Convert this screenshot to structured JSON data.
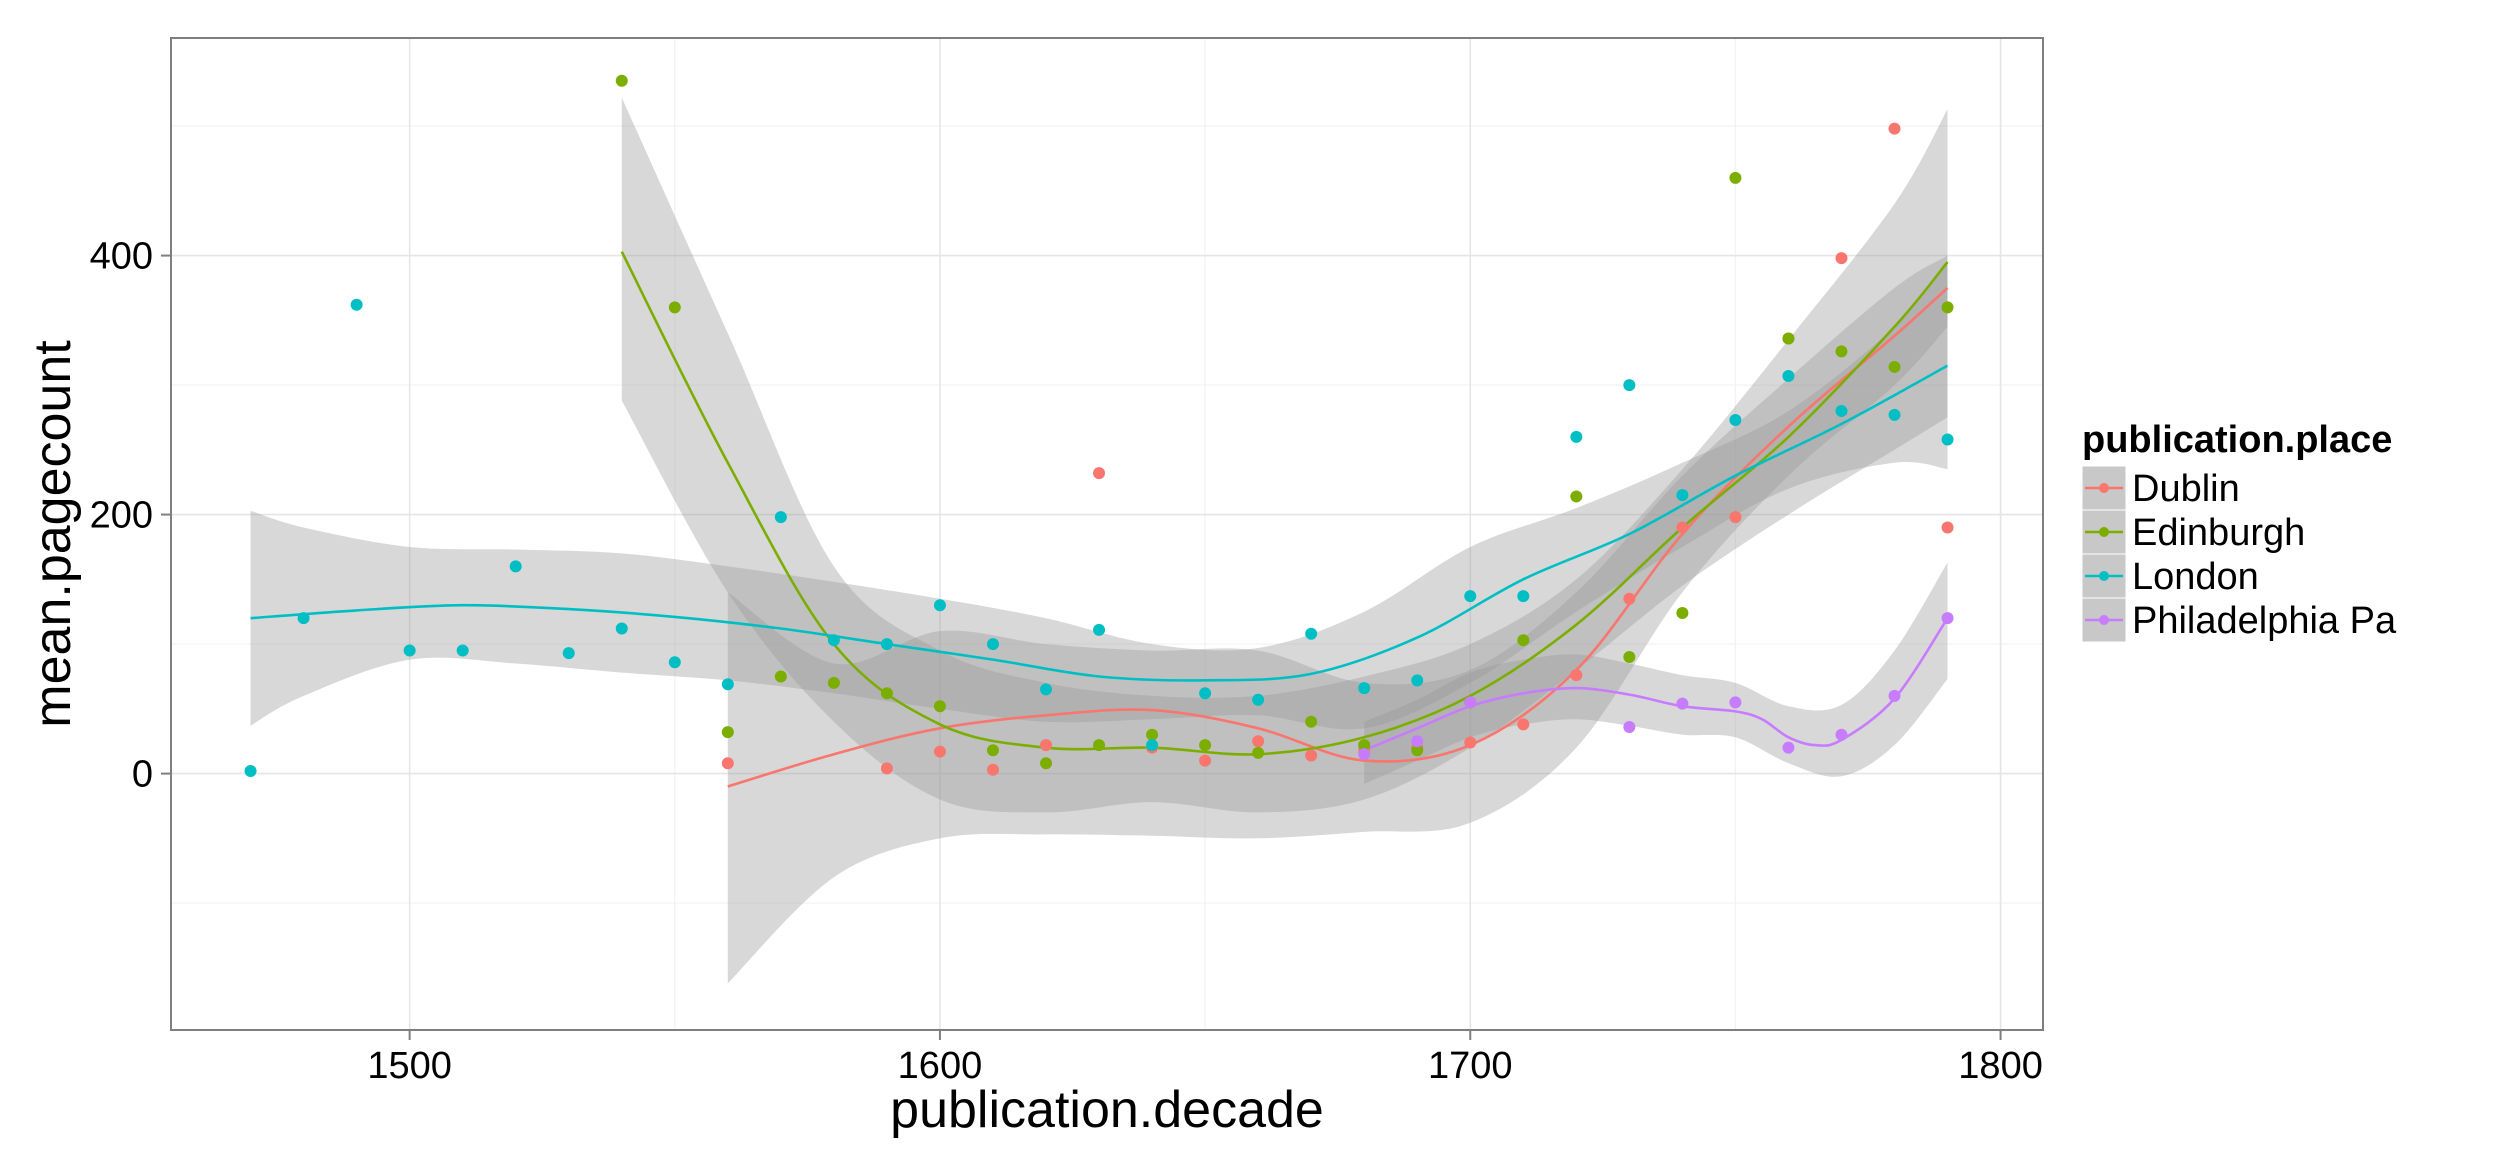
{
  "chart_data": {
    "type": "scatter",
    "xlabel": "publication.decade",
    "ylabel": "mean.pagecount",
    "xlim": [
      1455,
      1808
    ],
    "ylim": [
      -198,
      568
    ],
    "x_ticks": [
      1500,
      1600,
      1700,
      1800
    ],
    "y_ticks": [
      0,
      200,
      400
    ],
    "x_ticks_labels": [
      "1500",
      "1600",
      "1700",
      "1800"
    ],
    "y_ticks_labels": [
      "0",
      "200",
      "400"
    ],
    "grid": true,
    "legend": {
      "title": "publication.place",
      "position": "right"
    },
    "series": [
      {
        "name": "Dublin",
        "color": "#F8766D",
        "points": [
          [
            1560,
            8
          ],
          [
            1590,
            4
          ],
          [
            1600,
            17
          ],
          [
            1610,
            3
          ],
          [
            1620,
            22
          ],
          [
            1630,
            232
          ],
          [
            1640,
            20
          ],
          [
            1650,
            10
          ],
          [
            1660,
            25
          ],
          [
            1670,
            14
          ],
          [
            1680,
            18
          ],
          [
            1690,
            20
          ],
          [
            1700,
            24
          ],
          [
            1710,
            38
          ],
          [
            1720,
            76
          ],
          [
            1730,
            135
          ],
          [
            1740,
            190
          ],
          [
            1750,
            198
          ],
          [
            1760,
            336
          ],
          [
            1770,
            398
          ],
          [
            1780,
            498
          ],
          [
            1790,
            190
          ]
        ],
        "smooth": [
          [
            1560,
            -10
          ],
          [
            1580,
            15
          ],
          [
            1600,
            35
          ],
          [
            1620,
            45
          ],
          [
            1640,
            49
          ],
          [
            1660,
            35
          ],
          [
            1680,
            10
          ],
          [
            1700,
            22
          ],
          [
            1720,
            80
          ],
          [
            1740,
            185
          ],
          [
            1760,
            268
          ],
          [
            1780,
            338
          ],
          [
            1790,
            375
          ]
        ],
        "band_upper": [
          [
            1560,
            140
          ],
          [
            1580,
            85
          ],
          [
            1600,
            110
          ],
          [
            1620,
            100
          ],
          [
            1640,
            95
          ],
          [
            1660,
            95
          ],
          [
            1680,
            70
          ],
          [
            1700,
            80
          ],
          [
            1720,
            140
          ],
          [
            1740,
            230
          ],
          [
            1760,
            305
          ],
          [
            1780,
            375
          ],
          [
            1790,
            400
          ]
        ],
        "band_lower": [
          [
            1560,
            -162
          ],
          [
            1580,
            -80
          ],
          [
            1600,
            -50
          ],
          [
            1620,
            -47
          ],
          [
            1640,
            -48
          ],
          [
            1660,
            -50
          ],
          [
            1680,
            -45
          ],
          [
            1700,
            -38
          ],
          [
            1720,
            20
          ],
          [
            1740,
            140
          ],
          [
            1760,
            230
          ],
          [
            1780,
            300
          ],
          [
            1790,
            345
          ]
        ]
      },
      {
        "name": "Edinburgh",
        "color": "#7CAE00",
        "points": [
          [
            1540,
            535
          ],
          [
            1550,
            360
          ],
          [
            1560,
            32
          ],
          [
            1570,
            75
          ],
          [
            1580,
            70
          ],
          [
            1590,
            62
          ],
          [
            1600,
            52
          ],
          [
            1610,
            18
          ],
          [
            1620,
            8
          ],
          [
            1630,
            22
          ],
          [
            1640,
            30
          ],
          [
            1650,
            22
          ],
          [
            1660,
            16
          ],
          [
            1670,
            40
          ],
          [
            1680,
            22
          ],
          [
            1690,
            18
          ],
          [
            1700,
            55
          ],
          [
            1710,
            103
          ],
          [
            1720,
            214
          ],
          [
            1730,
            90
          ],
          [
            1740,
            124
          ],
          [
            1750,
            460
          ],
          [
            1760,
            336
          ],
          [
            1770,
            326
          ],
          [
            1780,
            314
          ],
          [
            1790,
            360
          ]
        ],
        "smooth": [
          [
            1540,
            403
          ],
          [
            1560,
            240
          ],
          [
            1580,
            100
          ],
          [
            1600,
            38
          ],
          [
            1620,
            20
          ],
          [
            1640,
            20
          ],
          [
            1660,
            15
          ],
          [
            1680,
            28
          ],
          [
            1700,
            60
          ],
          [
            1720,
            115
          ],
          [
            1740,
            190
          ],
          [
            1760,
            260
          ],
          [
            1780,
            345
          ],
          [
            1790,
            395
          ]
        ],
        "band_upper": [
          [
            1540,
            522
          ],
          [
            1560,
            340
          ],
          [
            1580,
            160
          ],
          [
            1600,
            95
          ],
          [
            1620,
            70
          ],
          [
            1640,
            60
          ],
          [
            1660,
            60
          ],
          [
            1680,
            75
          ],
          [
            1700,
            100
          ],
          [
            1720,
            150
          ],
          [
            1740,
            235
          ],
          [
            1760,
            335
          ],
          [
            1780,
            440
          ],
          [
            1790,
            513
          ]
        ],
        "band_lower": [
          [
            1540,
            288
          ],
          [
            1560,
            140
          ],
          [
            1580,
            40
          ],
          [
            1600,
            -20
          ],
          [
            1620,
            -30
          ],
          [
            1640,
            -22
          ],
          [
            1660,
            -30
          ],
          [
            1680,
            -20
          ],
          [
            1700,
            20
          ],
          [
            1720,
            80
          ],
          [
            1740,
            145
          ],
          [
            1760,
            200
          ],
          [
            1780,
            250
          ],
          [
            1790,
            275
          ]
        ]
      },
      {
        "name": "London",
        "color": "#00BFC4",
        "points": [
          [
            1470,
            2
          ],
          [
            1480,
            120
          ],
          [
            1490,
            362
          ],
          [
            1500,
            95
          ],
          [
            1510,
            95
          ],
          [
            1520,
            160
          ],
          [
            1530,
            93
          ],
          [
            1540,
            112
          ],
          [
            1550,
            86
          ],
          [
            1560,
            69
          ],
          [
            1570,
            198
          ],
          [
            1580,
            103
          ],
          [
            1590,
            100
          ],
          [
            1600,
            130
          ],
          [
            1610,
            100
          ],
          [
            1620,
            65
          ],
          [
            1630,
            111
          ],
          [
            1640,
            22
          ],
          [
            1650,
            62
          ],
          [
            1660,
            57
          ],
          [
            1670,
            108
          ],
          [
            1680,
            66
          ],
          [
            1690,
            72
          ],
          [
            1700,
            137
          ],
          [
            1710,
            137
          ],
          [
            1720,
            260
          ],
          [
            1730,
            300
          ],
          [
            1740,
            215
          ],
          [
            1750,
            273
          ],
          [
            1760,
            307
          ],
          [
            1770,
            280
          ],
          [
            1780,
            277
          ],
          [
            1790,
            258
          ]
        ],
        "smooth": [
          [
            1470,
            120
          ],
          [
            1490,
            126
          ],
          [
            1510,
            130
          ],
          [
            1530,
            127
          ],
          [
            1550,
            121
          ],
          [
            1570,
            112
          ],
          [
            1590,
            100
          ],
          [
            1610,
            88
          ],
          [
            1630,
            75
          ],
          [
            1650,
            72
          ],
          [
            1670,
            77
          ],
          [
            1690,
            105
          ],
          [
            1710,
            150
          ],
          [
            1730,
            185
          ],
          [
            1750,
            230
          ],
          [
            1770,
            270
          ],
          [
            1790,
            315
          ]
        ],
        "band_upper": [
          [
            1470,
            203
          ],
          [
            1480,
            190
          ],
          [
            1500,
            175
          ],
          [
            1520,
            173
          ],
          [
            1540,
            170
          ],
          [
            1560,
            160
          ],
          [
            1580,
            148
          ],
          [
            1600,
            135
          ],
          [
            1620,
            120
          ],
          [
            1640,
            100
          ],
          [
            1660,
            97
          ],
          [
            1680,
            125
          ],
          [
            1700,
            175
          ],
          [
            1720,
            205
          ],
          [
            1740,
            240
          ],
          [
            1760,
            280
          ],
          [
            1780,
            345
          ],
          [
            1790,
            395
          ]
        ],
        "band_lower": [
          [
            1470,
            37
          ],
          [
            1480,
            60
          ],
          [
            1500,
            88
          ],
          [
            1520,
            85
          ],
          [
            1540,
            78
          ],
          [
            1560,
            72
          ],
          [
            1580,
            62
          ],
          [
            1600,
            50
          ],
          [
            1620,
            40
          ],
          [
            1640,
            42
          ],
          [
            1660,
            45
          ],
          [
            1680,
            35
          ],
          [
            1700,
            70
          ],
          [
            1720,
            125
          ],
          [
            1740,
            175
          ],
          [
            1760,
            220
          ],
          [
            1780,
            240
          ],
          [
            1790,
            235
          ]
        ]
      },
      {
        "name": "Philadelphia Pa",
        "color": "#C77CFF",
        "points": [
          [
            1680,
            15
          ],
          [
            1690,
            25
          ],
          [
            1700,
            55
          ],
          [
            1730,
            36
          ],
          [
            1740,
            54
          ],
          [
            1750,
            55
          ],
          [
            1760,
            20
          ],
          [
            1770,
            30
          ],
          [
            1780,
            60
          ],
          [
            1790,
            120
          ]
        ],
        "smooth": [
          [
            1680,
            18
          ],
          [
            1690,
            35
          ],
          [
            1700,
            52
          ],
          [
            1710,
            62
          ],
          [
            1720,
            66
          ],
          [
            1730,
            61
          ],
          [
            1740,
            52
          ],
          [
            1750,
            48
          ],
          [
            1755,
            42
          ],
          [
            1760,
            28
          ],
          [
            1765,
            22
          ],
          [
            1770,
            26
          ],
          [
            1780,
            58
          ],
          [
            1790,
            120
          ]
        ],
        "band_upper": [
          [
            1680,
            40
          ],
          [
            1690,
            57
          ],
          [
            1700,
            78
          ],
          [
            1710,
            88
          ],
          [
            1720,
            92
          ],
          [
            1730,
            85
          ],
          [
            1740,
            76
          ],
          [
            1750,
            70
          ],
          [
            1760,
            52
          ],
          [
            1770,
            53
          ],
          [
            1780,
            95
          ],
          [
            1790,
            163
          ]
        ],
        "band_lower": [
          [
            1680,
            -8
          ],
          [
            1690,
            10
          ],
          [
            1700,
            28
          ],
          [
            1710,
            38
          ],
          [
            1720,
            42
          ],
          [
            1730,
            37
          ],
          [
            1740,
            30
          ],
          [
            1750,
            28
          ],
          [
            1760,
            8
          ],
          [
            1770,
            -2
          ],
          [
            1780,
            22
          ],
          [
            1790,
            73
          ]
        ]
      }
    ]
  }
}
